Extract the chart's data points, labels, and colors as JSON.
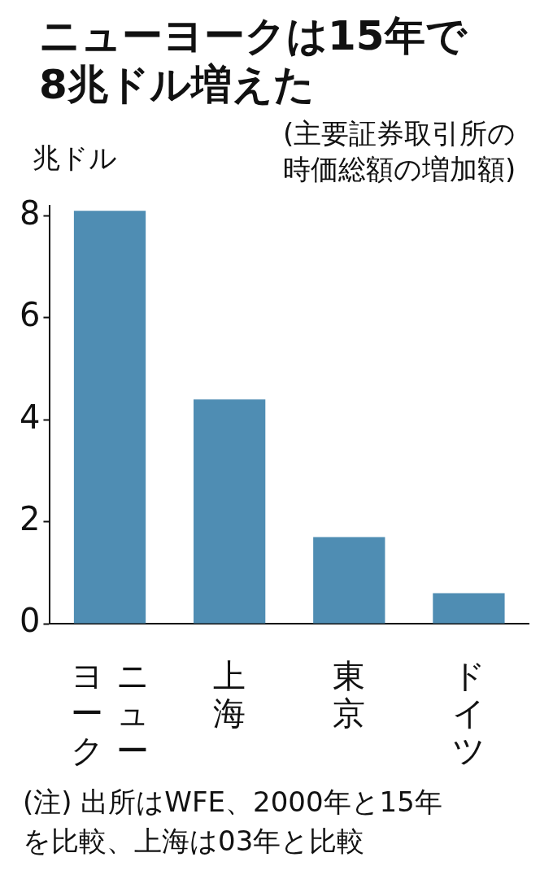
{
  "chart_data": {
    "type": "bar",
    "title": "ニューヨークは15年で8兆ドル増えた",
    "subtitle": "(主要証券取引所の時価総額の増加額)",
    "ylabel": "兆ドル",
    "categories": [
      "ニューヨーク",
      "上海",
      "東京",
      "ドイツ"
    ],
    "values": [
      8.1,
      4.4,
      1.7,
      0.6
    ],
    "color": "#4f8db3",
    "ylim": [
      0,
      8.2
    ],
    "yticks": [
      0,
      2,
      4,
      6,
      8
    ],
    "grid": false,
    "legend": false,
    "annotations": [
      "(注) 出所はWFE、2000年と15年を比較、上海は03年と比較"
    ]
  }
}
